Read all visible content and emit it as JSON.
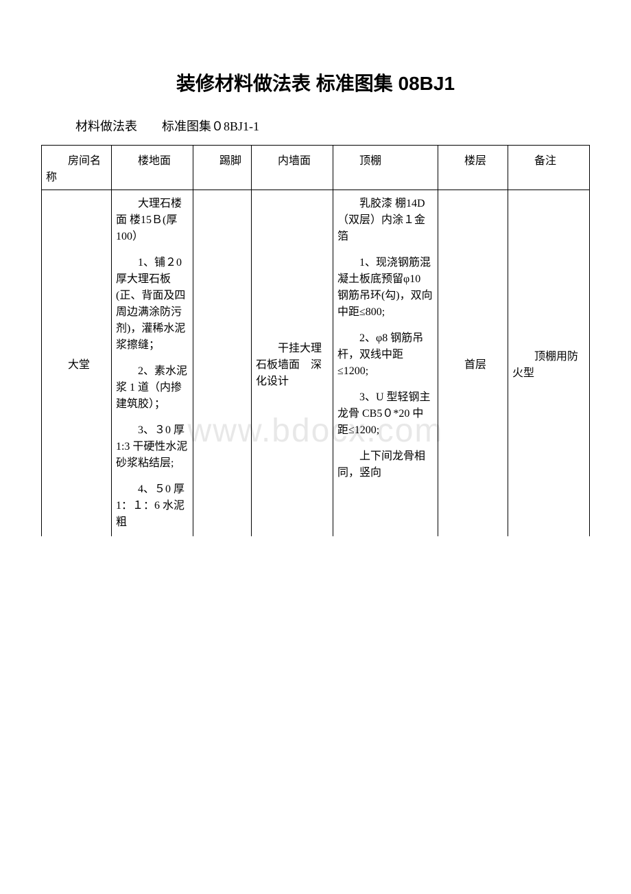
{
  "title": "装修材料做法表 标准图集 08BJ1",
  "subtitle": "材料做法表　　标准图集０8BJ1-1",
  "watermark": "www.bdocx.com",
  "table_headers": {
    "col1": "房间名称",
    "col2": "楼地面",
    "col3": "踢脚",
    "col4": "内墙面",
    "col5": "顶棚",
    "col6": "楼层",
    "col7": "备注"
  },
  "row1": {
    "room_name": "大堂",
    "floor": {
      "p1": "大理石楼面 楼15Ｂ(厚100）",
      "p2": "1、铺２0 厚大理石板(正、背面及四周边满涂防污剂)，灌稀水泥浆擦缝；",
      "p3": "2、素水泥浆 1 道（内掺建筑胶）；",
      "p4": "3、３0 厚1:3 干硬性水泥砂浆粘结层;",
      "p5": "4、５0 厚 1：１：6 水泥粗"
    },
    "skirting": "",
    "interior_wall": "干挂大理石板墙面　深化设计",
    "ceiling": {
      "p1": "乳胶漆 棚14D（双层）内涂１金箔",
      "p2": "1、现浇钢筋混凝土板底预留φ10 钢筋吊环(勾)，双向中距≤800;",
      "p3": "2、φ8 钢筋吊杆，双线中距≤1200;",
      "p4": "3、U 型轻钢主龙骨 CB5０*20 中距≤1200;",
      "p5": "上下间龙骨相同，竖向"
    },
    "floor_level": "首层",
    "remarks": "顶棚用防火型"
  },
  "styles": {
    "background_color": "#ffffff",
    "border_color": "#000000",
    "text_color": "#000000",
    "watermark_color": "#e8e8e8",
    "title_fontsize": 28,
    "body_fontsize": 16,
    "subtitle_fontsize": 18
  }
}
